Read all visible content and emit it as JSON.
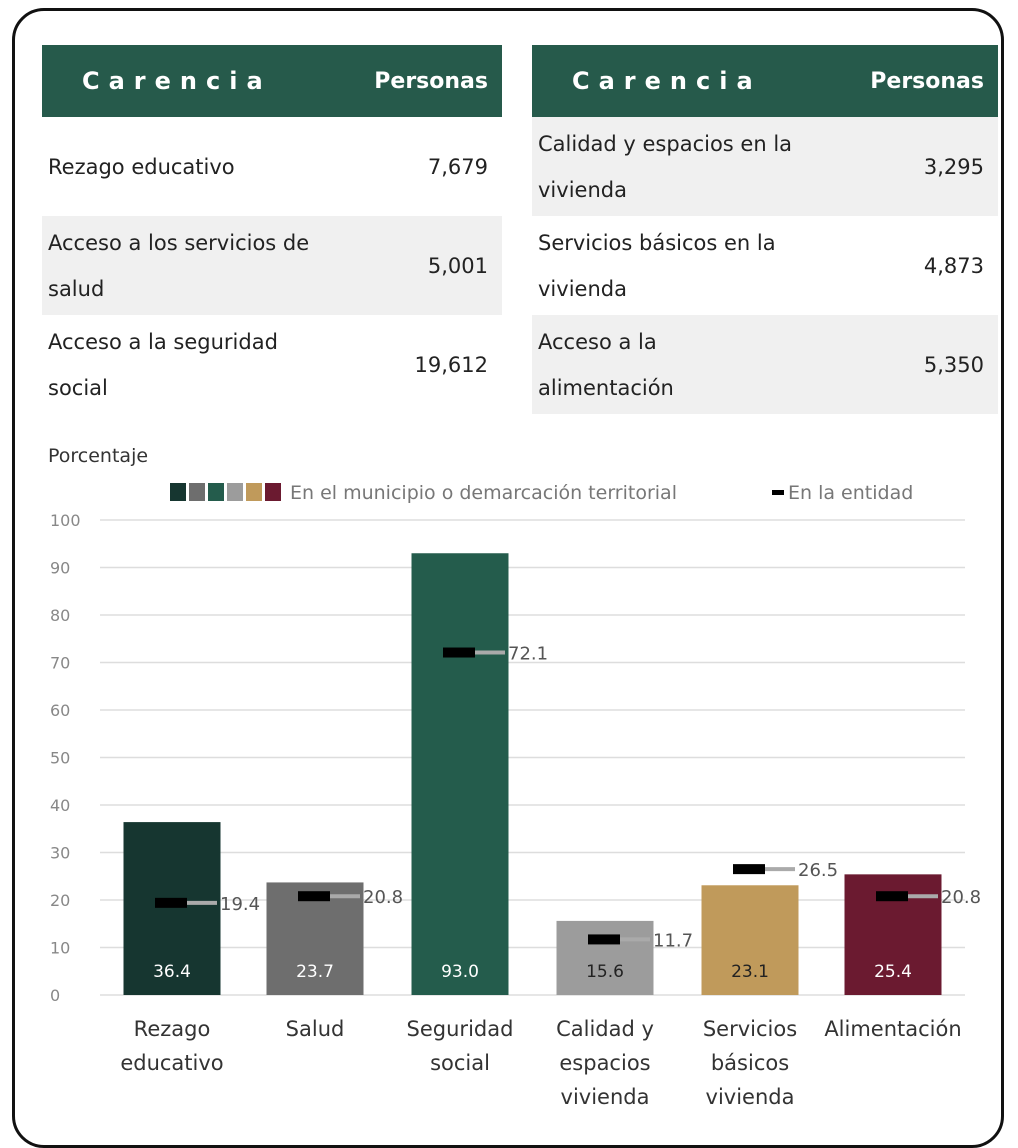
{
  "table_left": {
    "header": [
      "Carencia",
      "Personas"
    ],
    "rows": [
      [
        "Rezago educativo",
        "7,679"
      ],
      [
        "Acceso a los servicios de\nsalud",
        "5,001"
      ],
      [
        "Acceso a la seguridad\nsocial",
        "19,612"
      ]
    ]
  },
  "table_right": {
    "header": [
      "Carencia",
      "Personas"
    ],
    "rows": [
      [
        "Calidad y espacios en la\nvivienda",
        "3,295"
      ],
      [
        "Servicios básicos en la\nvivienda",
        "4,873"
      ],
      [
        "Acceso a la\nalimentación",
        "5,350"
      ]
    ]
  },
  "chart_data": {
    "type": "bar",
    "ylabel": "Porcentaje",
    "categories": [
      "Rezago\neducativo",
      "Salud",
      "Seguridad\nsocial",
      "Calidad y\nespacios\nvivienda",
      "Servicios\nbásicos\nvivienda",
      "Alimentación"
    ],
    "series": [
      {
        "name": "En el municipio o demarcación territorial",
        "colors": [
          "#163630",
          "#6e6e6e",
          "#245c4c",
          "#9c9c9c",
          "#c09a5b",
          "#6b1a30"
        ],
        "values": [
          36.4,
          23.7,
          93.0,
          15.6,
          23.1,
          25.4
        ],
        "value_labels": [
          "36.4",
          "23.7",
          "93.0",
          "15.6",
          "23.1",
          "25.4"
        ]
      },
      {
        "name": "En la entidad",
        "color": "#000000",
        "values": [
          19.4,
          20.8,
          72.1,
          11.7,
          26.5,
          20.8
        ]
      }
    ],
    "ylim": [
      0,
      100
    ],
    "yticks": [
      0,
      10,
      20,
      30,
      40,
      50,
      60,
      70,
      80,
      90,
      100
    ],
    "grid": true
  }
}
